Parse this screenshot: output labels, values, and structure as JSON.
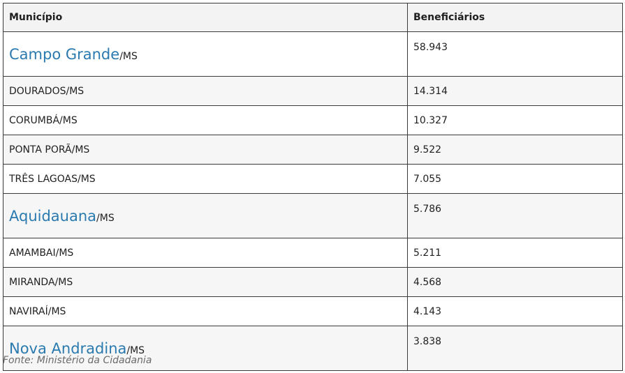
{
  "table": {
    "headers": {
      "municipio": "Município",
      "beneficiarios": "Beneficiários"
    },
    "rows": [
      {
        "name": "Campo Grande",
        "suffix": "/MS",
        "value": "58.943",
        "linked": true
      },
      {
        "name": "DOURADOS/MS",
        "suffix": "",
        "value": "14.314",
        "linked": false
      },
      {
        "name": "CORUMBÁ/MS",
        "suffix": "",
        "value": "10.327",
        "linked": false
      },
      {
        "name": "PONTA PORÃ/MS",
        "suffix": "",
        "value": "9.522",
        "linked": false
      },
      {
        "name": "TRÊS LAGOAS/MS",
        "suffix": "",
        "value": "7.055",
        "linked": false
      },
      {
        "name": "Aquidauana",
        "suffix": "/MS",
        "value": "5.786",
        "linked": true
      },
      {
        "name": "AMAMBAI/MS",
        "suffix": "",
        "value": "5.211",
        "linked": false
      },
      {
        "name": "MIRANDA/MS",
        "suffix": "",
        "value": "4.568",
        "linked": false
      },
      {
        "name": "NAVIRAÍ/MS",
        "suffix": "",
        "value": "4.143",
        "linked": false
      },
      {
        "name": "Nova Andradina",
        "suffix": "/MS",
        "value": "3.838",
        "linked": true
      }
    ]
  },
  "source": "Fonte: Ministério da Cidadania",
  "colors": {
    "link": "#2a7ab0",
    "border": "#3a3a3a",
    "header_bg": "#f3f3f3",
    "stripe_bg": "#f6f6f6"
  }
}
